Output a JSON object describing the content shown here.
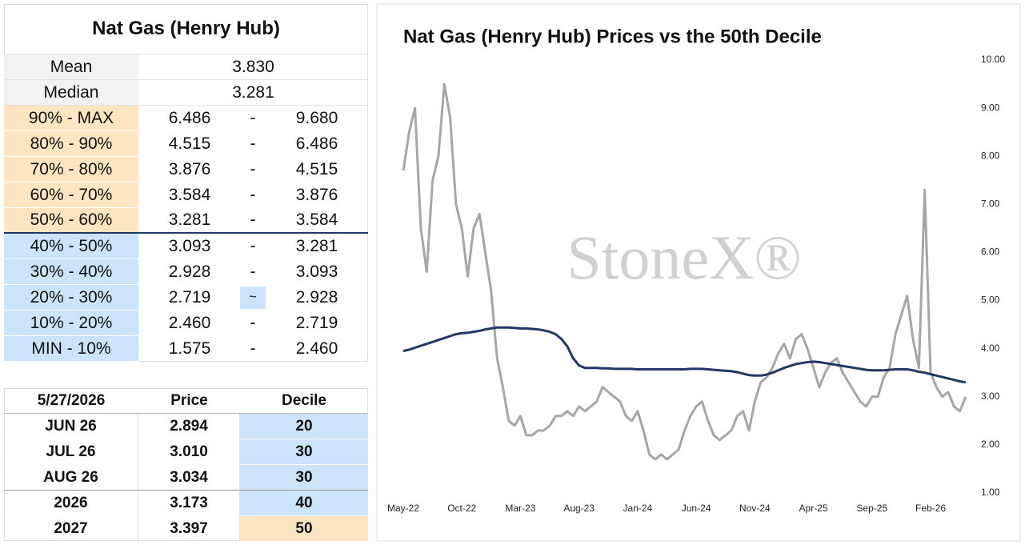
{
  "table": {
    "title": "Nat Gas (Henry Hub)",
    "stats": [
      [
        "Mean",
        "3.830"
      ],
      [
        "Median",
        "3.281"
      ]
    ],
    "deciles": [
      [
        "90% - MAX",
        "6.486",
        "-",
        "9.680"
      ],
      [
        "80% - 90%",
        "4.515",
        "-",
        "6.486"
      ],
      [
        "70% - 80%",
        "3.876",
        "-",
        "4.515"
      ],
      [
        "60% - 70%",
        "3.584",
        "-",
        "3.876"
      ],
      [
        "50% - 60%",
        "3.281",
        "-",
        "3.584"
      ],
      [
        "40% - 50%",
        "3.093",
        "-",
        "3.281"
      ],
      [
        "30% - 40%",
        "2.928",
        "-",
        "3.093"
      ],
      [
        "20% - 30%",
        "2.719",
        "~",
        "2.928"
      ],
      [
        "10% - 20%",
        "2.460",
        "-",
        "2.719"
      ],
      [
        "MIN - 10%",
        "1.575",
        "-",
        "2.460"
      ]
    ]
  },
  "forward": {
    "header": [
      "5/27/2026",
      "Price",
      "Decile"
    ],
    "rows": [
      [
        "JUN 26",
        "2.894",
        "20"
      ],
      [
        "JUL 26",
        "3.010",
        "30"
      ],
      [
        "AUG 26",
        "3.034",
        "30"
      ],
      [
        "2026",
        "3.173",
        "40"
      ],
      [
        "2027",
        "3.397",
        "50"
      ]
    ]
  },
  "chart_data": {
    "type": "line",
    "title": "Nat Gas (Henry Hub) Prices vs the 50th Decile",
    "watermark": "StoneX®",
    "categories": [
      "May-22",
      null,
      null,
      null,
      null,
      null,
      null,
      null,
      null,
      null,
      "Oct-22",
      null,
      null,
      null,
      null,
      null,
      null,
      null,
      null,
      null,
      "Mar-23",
      null,
      null,
      null,
      null,
      null,
      null,
      null,
      null,
      null,
      "Aug-23",
      null,
      null,
      null,
      null,
      null,
      null,
      null,
      null,
      null,
      "Jan-24",
      null,
      null,
      null,
      null,
      null,
      null,
      null,
      null,
      null,
      "Jun-24",
      null,
      null,
      null,
      null,
      null,
      null,
      null,
      null,
      null,
      "Nov-24",
      null,
      null,
      null,
      null,
      null,
      null,
      null,
      null,
      null,
      "Apr-25",
      null,
      null,
      null,
      null,
      null,
      null,
      null,
      null,
      null,
      "Sep-25",
      null,
      null,
      null,
      null,
      null,
      null,
      null,
      null,
      null,
      "Feb-26",
      null,
      null,
      null,
      null,
      null,
      null
    ],
    "series": [
      {
        "color": "#a6a6a6",
        "values": [
          7.7,
          8.5,
          9.0,
          6.5,
          5.6,
          7.5,
          8.0,
          9.5,
          8.8,
          7.0,
          6.5,
          5.5,
          6.5,
          6.8,
          6.0,
          5.2,
          3.8,
          3.2,
          2.5,
          2.4,
          2.6,
          2.2,
          2.2,
          2.3,
          2.3,
          2.4,
          2.6,
          2.6,
          2.7,
          2.6,
          2.8,
          2.7,
          2.8,
          2.9,
          3.2,
          3.1,
          3.0,
          2.9,
          2.6,
          2.5,
          2.7,
          2.3,
          1.8,
          1.7,
          1.8,
          1.7,
          1.8,
          1.9,
          2.3,
          2.6,
          2.8,
          2.9,
          2.5,
          2.2,
          2.1,
          2.2,
          2.3,
          2.6,
          2.7,
          2.3,
          2.9,
          3.3,
          3.4,
          3.6,
          3.9,
          4.1,
          3.8,
          4.2,
          4.3,
          4.0,
          3.6,
          3.2,
          3.5,
          3.7,
          3.8,
          3.5,
          3.3,
          3.1,
          2.9,
          2.8,
          3.0,
          3.0,
          3.4,
          3.6,
          4.3,
          4.7,
          5.1,
          4.2,
          3.6,
          7.3,
          3.5,
          3.2,
          3.0,
          3.1,
          2.8,
          2.7,
          3.0
        ]
      },
      {
        "color": "#1f3864",
        "values": [
          3.95,
          3.98,
          4.02,
          4.06,
          4.1,
          4.14,
          4.18,
          4.22,
          4.26,
          4.3,
          4.32,
          4.33,
          4.35,
          4.37,
          4.4,
          4.42,
          4.44,
          4.44,
          4.44,
          4.43,
          4.42,
          4.42,
          4.41,
          4.4,
          4.38,
          4.35,
          4.3,
          4.2,
          4.05,
          3.8,
          3.65,
          3.6,
          3.6,
          3.6,
          3.59,
          3.59,
          3.58,
          3.58,
          3.58,
          3.58,
          3.57,
          3.57,
          3.57,
          3.57,
          3.57,
          3.57,
          3.57,
          3.57,
          3.57,
          3.58,
          3.58,
          3.58,
          3.57,
          3.56,
          3.55,
          3.54,
          3.53,
          3.51,
          3.48,
          3.45,
          3.44,
          3.44,
          3.46,
          3.5,
          3.55,
          3.6,
          3.64,
          3.68,
          3.7,
          3.72,
          3.73,
          3.72,
          3.7,
          3.68,
          3.66,
          3.64,
          3.62,
          3.6,
          3.58,
          3.56,
          3.55,
          3.55,
          3.55,
          3.56,
          3.57,
          3.57,
          3.57,
          3.55,
          3.52,
          3.5,
          3.47,
          3.44,
          3.41,
          3.38,
          3.35,
          3.32,
          3.3
        ]
      }
    ],
    "ylim": [
      1,
      10
    ],
    "yticks": [
      {
        "value": 1,
        "label": "1.00"
      },
      {
        "value": 2,
        "label": "2.00"
      },
      {
        "value": 3,
        "label": "3.00"
      },
      {
        "value": 4,
        "label": "4.00"
      },
      {
        "value": 5,
        "label": "5.00"
      },
      {
        "value": 6,
        "label": "6.00"
      },
      {
        "value": 7,
        "label": "7.00"
      },
      {
        "value": 8,
        "label": "8.00"
      },
      {
        "value": 9,
        "label": "9.00"
      },
      {
        "value": 10,
        "label": "10.00"
      }
    ],
    "grid": false
  }
}
